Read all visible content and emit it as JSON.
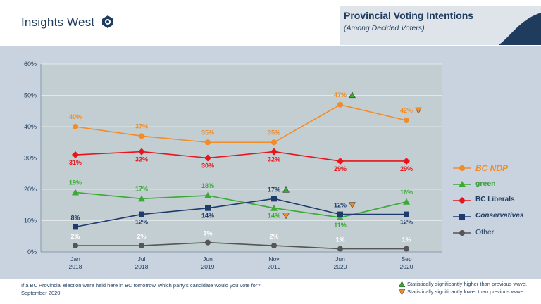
{
  "brand": {
    "name": "Insights West"
  },
  "header": {
    "title": "Provincial Voting Intentions",
    "subtitle": "(Among Decided Voters)"
  },
  "colors": {
    "ndp": "#f28c28",
    "green": "#3aaa35",
    "liberal": "#e8141b",
    "conservative": "#1f3b6e",
    "other": "#555555",
    "navy": "#1f3b5e"
  },
  "legend": {
    "ndp": "BC NDP",
    "green": "green",
    "liberal": "BC Liberals",
    "conservative": "Conservatives",
    "other": "Other"
  },
  "chart_data": {
    "type": "line",
    "categories": [
      [
        "Jan",
        "2018"
      ],
      [
        "Jul",
        "2018"
      ],
      [
        "Jun",
        "2019"
      ],
      [
        "Nov",
        "2019"
      ],
      [
        "Jun",
        "2020"
      ],
      [
        "Sep",
        "2020"
      ]
    ],
    "ylim": [
      0,
      60
    ],
    "yticks": [
      "0%",
      "10%",
      "20%",
      "30%",
      "40%",
      "50%",
      "60%"
    ],
    "series": [
      {
        "key": "ndp",
        "name": "BC NDP",
        "color": "#f28c28",
        "marker": "circle",
        "values": [
          40,
          37,
          35,
          35,
          47,
          42
        ],
        "labels": [
          "40%",
          "37%",
          "35%",
          "35%",
          "47%",
          "42%"
        ],
        "label_pos": "above",
        "flags": [
          null,
          null,
          null,
          null,
          "up",
          "down"
        ]
      },
      {
        "key": "liberal",
        "name": "BC Liberals",
        "color": "#e8141b",
        "marker": "diamond",
        "values": [
          31,
          32,
          30,
          32,
          29,
          29
        ],
        "labels": [
          "31%",
          "32%",
          "30%",
          "32%",
          "29%",
          "29%"
        ],
        "label_pos": "below",
        "flags": [
          null,
          null,
          null,
          null,
          null,
          null
        ]
      },
      {
        "key": "green",
        "name": "Green",
        "color": "#3aaa35",
        "marker": "triangle",
        "values": [
          19,
          17,
          18,
          14,
          11,
          16
        ],
        "labels": [
          "19%",
          "17%",
          "18%",
          "14%",
          "11%",
          "16%"
        ],
        "label_pos": "mixed",
        "flags": [
          null,
          null,
          null,
          "down",
          null,
          null
        ]
      },
      {
        "key": "conservative",
        "name": "Conservatives",
        "color": "#1f3b6e",
        "marker": "square",
        "values": [
          8,
          12,
          14,
          17,
          12,
          12
        ],
        "labels": [
          "8%",
          "12%",
          "14%",
          "17%",
          "12%",
          "12%"
        ],
        "label_pos": "mixed",
        "flags": [
          null,
          null,
          null,
          "up",
          "down",
          null
        ]
      },
      {
        "key": "other",
        "name": "Other",
        "color": "#555555",
        "marker": "circle",
        "values": [
          2,
          2,
          3,
          2,
          1,
          1
        ],
        "labels": [
          "2%",
          "2%",
          "3%",
          "2%",
          "1%",
          "1%"
        ],
        "label_pos": "above",
        "flags": [
          null,
          null,
          null,
          null,
          null,
          null
        ]
      }
    ]
  },
  "footnote": {
    "question": "If a BC Provincial election were held here in BC tomorrow, which party's candidate would you vote for?",
    "date": "September 2020"
  },
  "key": {
    "higher": "Statistically significantly higher than previous wave.",
    "lower": "Statistically significantly lower than previous wave."
  }
}
